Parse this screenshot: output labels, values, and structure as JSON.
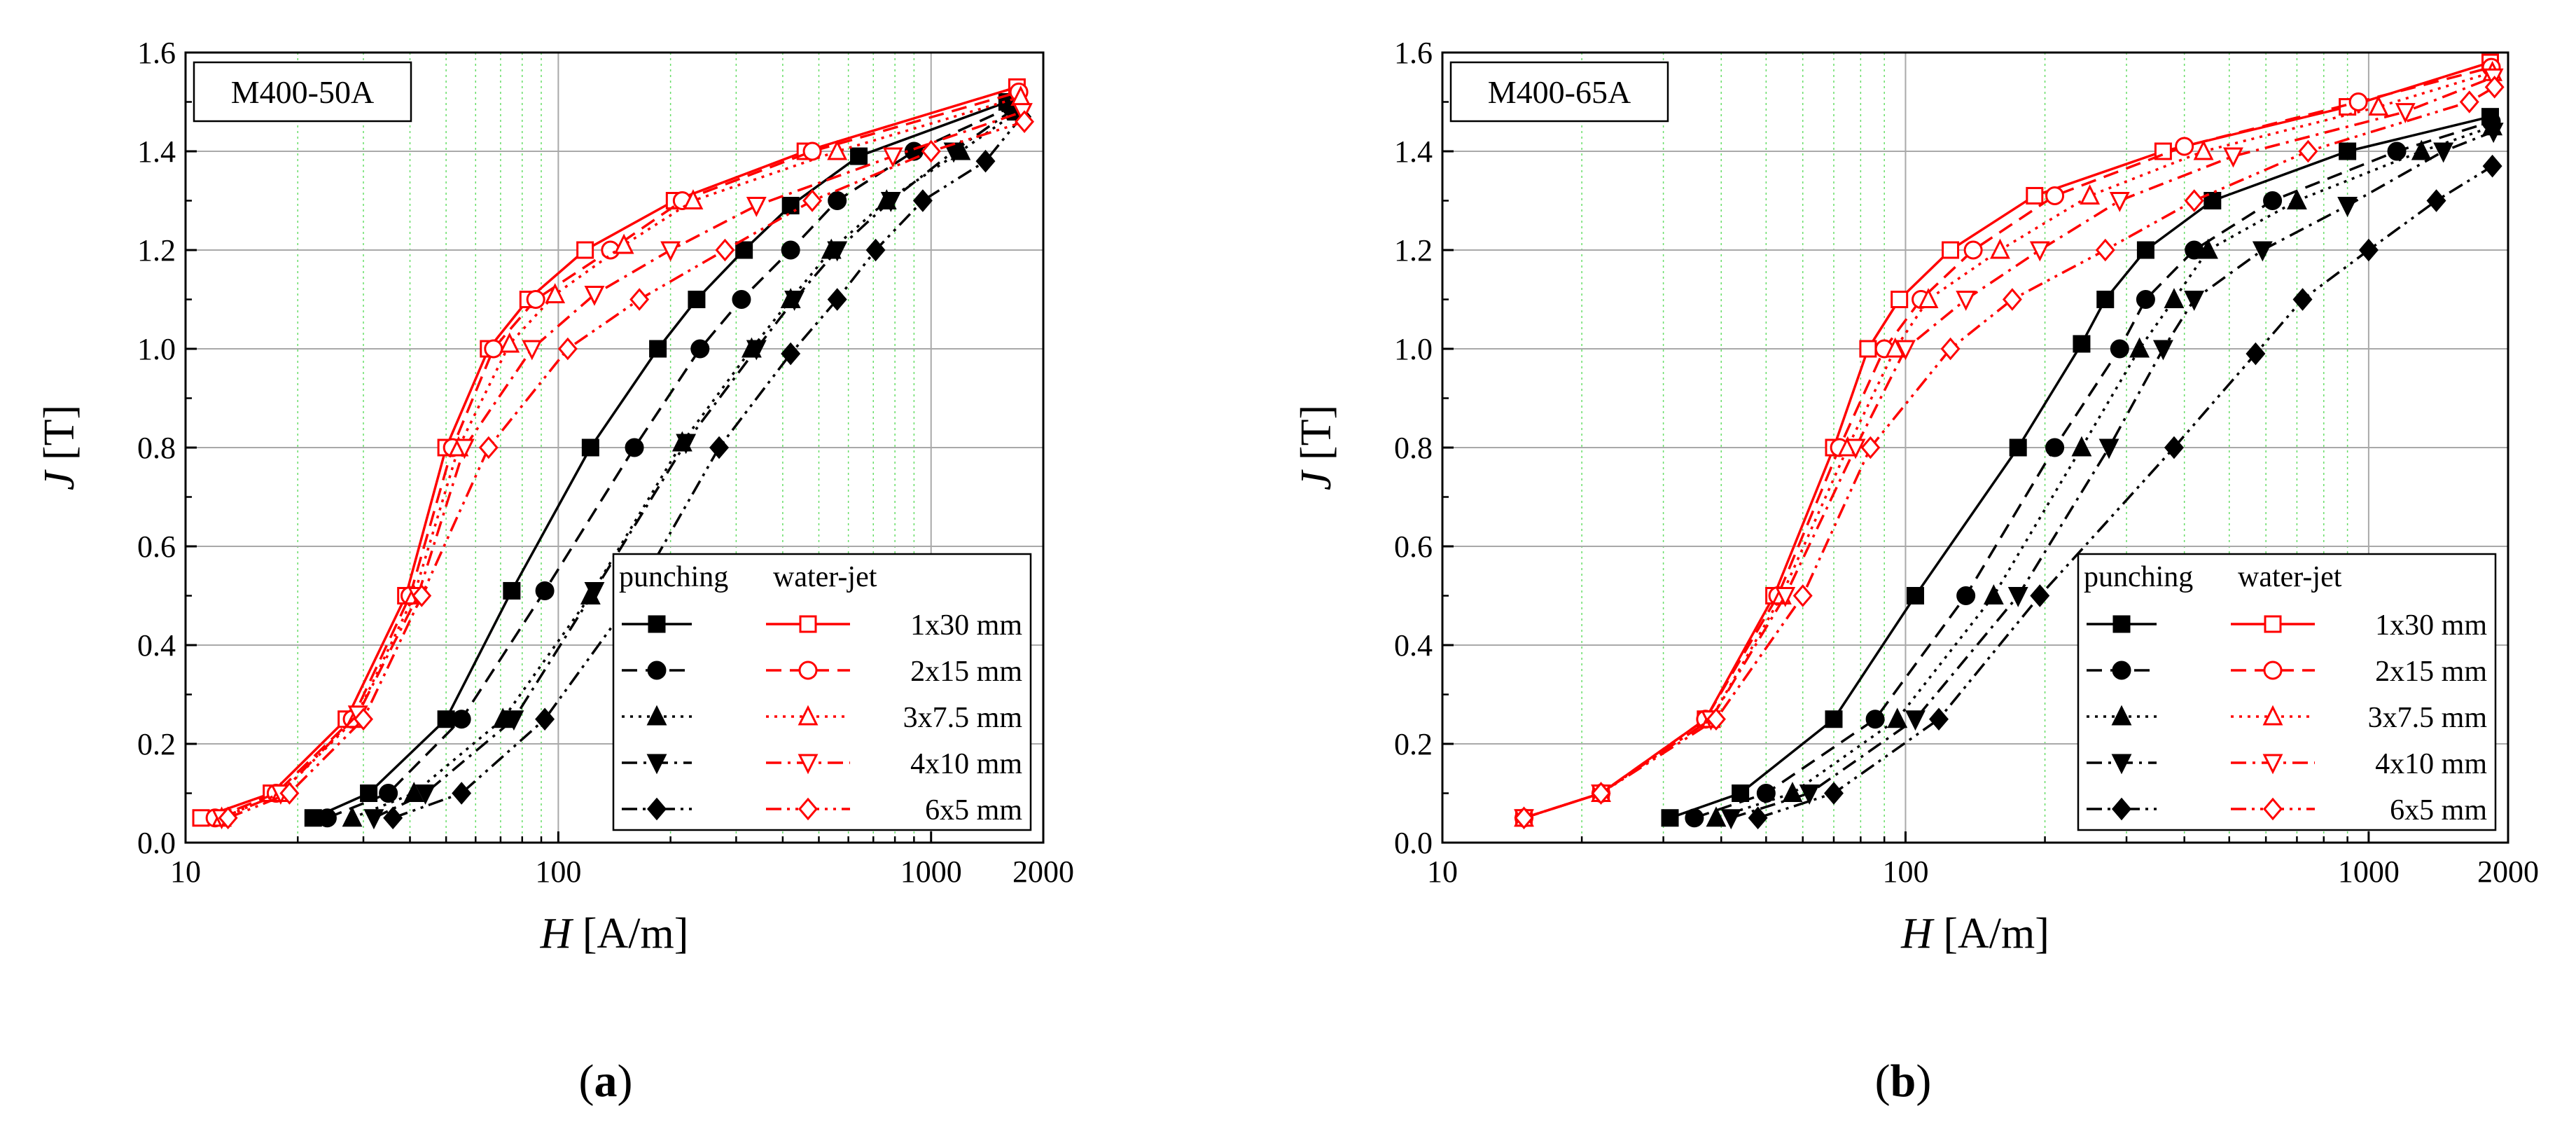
{
  "figure": {
    "panel_labels": [
      "a",
      "b"
    ]
  },
  "legend": {
    "header_punching": "punching",
    "header_waterjet": "water-jet",
    "entries": [
      "1x30 mm",
      "2x15 mm",
      "3x7.5 mm",
      "4x10 mm",
      "6x5 mm"
    ]
  },
  "colors": {
    "punching": "#000000",
    "waterjet": "#ff0000",
    "major_grid": "#a9a9a9",
    "minor_grid": "#66dd66"
  },
  "chart_data": [
    {
      "type": "line",
      "panel": "a",
      "annotation": "M400-50A",
      "xlabel_var": "H",
      "xlabel_unit": " [A/m]",
      "ylabel_var": "J",
      "ylabel_unit": " [T]",
      "xscale": "log",
      "xlim": [
        10,
        2000
      ],
      "ylim": [
        0,
        1.6
      ],
      "xticks": [
        10,
        100,
        1000,
        2000
      ],
      "xtick_labels": [
        "10",
        "100",
        "1000",
        "2000"
      ],
      "yticks": [
        0,
        0.2,
        0.4,
        0.6,
        0.8,
        1.0,
        1.2,
        1.4,
        1.6
      ],
      "ytick_labels": [
        "0.0",
        "0.2",
        "0.4",
        "0.6",
        "0.8",
        "1.0",
        "1.2",
        "1.4",
        "1.6"
      ],
      "grid": true,
      "legend_position": "bottom-right",
      "series": [
        {
          "name": "1x30 mm",
          "method": "punching",
          "marker": "square-filled",
          "dash": "solid",
          "x": [
            22,
            31,
            50,
            75,
            122,
            185,
            235,
            315,
            420,
            640,
            1600
          ],
          "y": [
            0.05,
            0.1,
            0.25,
            0.51,
            0.8,
            1.0,
            1.1,
            1.2,
            1.29,
            1.39,
            1.5
          ]
        },
        {
          "name": "2x15 mm",
          "method": "punching",
          "marker": "circle-filled",
          "dash": "dash",
          "x": [
            24,
            35,
            55,
            92,
            160,
            240,
            310,
            420,
            560,
            900,
            1640
          ],
          "y": [
            0.05,
            0.1,
            0.25,
            0.51,
            0.8,
            1.0,
            1.1,
            1.2,
            1.3,
            1.4,
            1.49
          ]
        },
        {
          "name": "3x7.5 mm",
          "method": "punching",
          "marker": "triangle-up-filled",
          "dash": "dot",
          "x": [
            28,
            41,
            71,
            122,
            215,
            330,
            420,
            540,
            760,
            1200,
            1700
          ],
          "y": [
            0.05,
            0.1,
            0.25,
            0.5,
            0.81,
            1.0,
            1.1,
            1.2,
            1.3,
            1.4,
            1.48
          ]
        },
        {
          "name": "4x10 mm",
          "method": "punching",
          "marker": "triangle-down-filled",
          "dash": "dashdot",
          "x": [
            32,
            44,
            76,
            125,
            220,
            340,
            430,
            560,
            780,
            1150,
            1700
          ],
          "y": [
            0.05,
            0.1,
            0.25,
            0.51,
            0.81,
            1.0,
            1.1,
            1.2,
            1.3,
            1.4,
            1.49
          ]
        },
        {
          "name": "6x5 mm",
          "method": "punching",
          "marker": "diamond-filled",
          "dash": "dashdotdot",
          "x": [
            36,
            55,
            92,
            160,
            270,
            420,
            560,
            710,
            950,
            1400,
            1750
          ],
          "y": [
            0.05,
            0.1,
            0.25,
            0.5,
            0.8,
            0.99,
            1.1,
            1.2,
            1.3,
            1.38,
            1.47
          ]
        },
        {
          "name": "1x30 mm",
          "method": "water-jet",
          "marker": "square-open",
          "dash": "solid",
          "x": [
            11,
            17,
            27,
            39,
            50,
            65,
            83,
            118,
            205,
            460,
            1700
          ],
          "y": [
            0.05,
            0.1,
            0.25,
            0.5,
            0.8,
            1.0,
            1.1,
            1.2,
            1.3,
            1.4,
            1.53
          ]
        },
        {
          "name": "2x15 mm",
          "method": "water-jet",
          "marker": "circle-open",
          "dash": "dash",
          "x": [
            12,
            17.5,
            28,
            40,
            52,
            67,
            87,
            138,
            215,
            480,
            1720
          ],
          "y": [
            0.05,
            0.1,
            0.25,
            0.5,
            0.8,
            1.0,
            1.1,
            1.2,
            1.3,
            1.4,
            1.52
          ]
        },
        {
          "name": "3x7.5 mm",
          "method": "water-jet",
          "marker": "triangle-up-open",
          "dash": "dot",
          "x": [
            12.5,
            18,
            28.5,
            41,
            54,
            74,
            98,
            150,
            230,
            560,
            1740
          ],
          "y": [
            0.05,
            0.1,
            0.25,
            0.5,
            0.8,
            1.01,
            1.11,
            1.21,
            1.3,
            1.4,
            1.51
          ]
        },
        {
          "name": "4x10 mm",
          "method": "water-jet",
          "marker": "triangle-down-open",
          "dash": "dashdot",
          "x": [
            12.5,
            18,
            29,
            42,
            56,
            85,
            125,
            200,
            340,
            790,
            1760
          ],
          "y": [
            0.05,
            0.1,
            0.26,
            0.5,
            0.8,
            1.0,
            1.11,
            1.2,
            1.29,
            1.39,
            1.48
          ]
        },
        {
          "name": "6x5 mm",
          "method": "water-jet",
          "marker": "diamond-open",
          "dash": "dashdotdot",
          "x": [
            13,
            19,
            30,
            43,
            65,
            106,
            165,
            280,
            480,
            1000,
            1780
          ],
          "y": [
            0.05,
            0.1,
            0.25,
            0.5,
            0.8,
            1.0,
            1.1,
            1.2,
            1.3,
            1.4,
            1.46
          ]
        }
      ]
    },
    {
      "type": "line",
      "panel": "b",
      "annotation": "M400-65A",
      "xlabel_var": "H",
      "xlabel_unit": " [A/m]",
      "ylabel_var": "J",
      "ylabel_unit": " [T]",
      "xscale": "log",
      "xlim": [
        10,
        2000
      ],
      "ylim": [
        0,
        1.6
      ],
      "xticks": [
        10,
        100,
        1000,
        2000
      ],
      "xtick_labels": [
        "10",
        "100",
        "1000",
        "2000"
      ],
      "yticks": [
        0,
        0.2,
        0.4,
        0.6,
        0.8,
        1.0,
        1.2,
        1.4,
        1.6
      ],
      "ytick_labels": [
        "0.0",
        "0.2",
        "0.4",
        "0.6",
        "0.8",
        "1.0",
        "1.2",
        "1.4",
        "1.6"
      ],
      "grid": true,
      "legend_position": "bottom-right",
      "series": [
        {
          "name": "1x30 mm",
          "method": "punching",
          "marker": "square-filled",
          "dash": "solid",
          "x": [
            31,
            44,
            70,
            105,
            175,
            240,
            270,
            330,
            460,
            900,
            1830
          ],
          "y": [
            0.05,
            0.1,
            0.25,
            0.5,
            0.8,
            1.01,
            1.1,
            1.2,
            1.3,
            1.4,
            1.47
          ]
        },
        {
          "name": "2x15 mm",
          "method": "punching",
          "marker": "circle-filled",
          "dash": "dash",
          "x": [
            35,
            50,
            86,
            135,
            210,
            290,
            330,
            420,
            620,
            1150,
            1840
          ],
          "y": [
            0.05,
            0.1,
            0.25,
            0.5,
            0.8,
            1.0,
            1.1,
            1.2,
            1.3,
            1.4,
            1.46
          ]
        },
        {
          "name": "3x7.5 mm",
          "method": "punching",
          "marker": "triangle-up-filled",
          "dash": "dot",
          "x": [
            39,
            57,
            96,
            155,
            240,
            320,
            380,
            450,
            700,
            1300,
            1850
          ],
          "y": [
            0.05,
            0.1,
            0.25,
            0.5,
            0.8,
            1.0,
            1.1,
            1.2,
            1.3,
            1.4,
            1.45
          ]
        },
        {
          "name": "4x10 mm",
          "method": "punching",
          "marker": "triangle-down-filled",
          "dash": "dashdot",
          "x": [
            42,
            62,
            105,
            175,
            275,
            360,
            420,
            590,
            900,
            1450,
            1860
          ],
          "y": [
            0.05,
            0.1,
            0.25,
            0.5,
            0.8,
            1.0,
            1.1,
            1.2,
            1.29,
            1.4,
            1.44
          ]
        },
        {
          "name": "6x5 mm",
          "method": "punching",
          "marker": "diamond-filled",
          "dash": "dashdotdot",
          "x": [
            48,
            70,
            118,
            195,
            380,
            570,
            720,
            1000,
            1400,
            1850
          ],
          "y": [
            0.05,
            0.1,
            0.25,
            0.5,
            0.8,
            0.99,
            1.1,
            1.2,
            1.3,
            1.37
          ]
        },
        {
          "name": "1x30 mm",
          "method": "water-jet",
          "marker": "square-open",
          "dash": "solid",
          "x": [
            15,
            22,
            37,
            52,
            70,
            83,
            97,
            125,
            190,
            360,
            900,
            1830
          ],
          "y": [
            0.05,
            0.1,
            0.25,
            0.5,
            0.8,
            1.0,
            1.1,
            1.2,
            1.31,
            1.4,
            1.49,
            1.58
          ]
        },
        {
          "name": "2x15 mm",
          "method": "water-jet",
          "marker": "circle-open",
          "dash": "dash",
          "x": [
            15,
            22,
            37,
            53,
            72,
            90,
            108,
            140,
            210,
            400,
            950,
            1840
          ],
          "y": [
            0.05,
            0.1,
            0.25,
            0.5,
            0.8,
            1.0,
            1.1,
            1.2,
            1.31,
            1.41,
            1.5,
            1.57
          ]
        },
        {
          "name": "3x7.5 mm",
          "method": "water-jet",
          "marker": "triangle-up-open",
          "dash": "dot",
          "x": [
            15,
            22,
            38,
            54,
            75,
            95,
            112,
            160,
            250,
            440,
            1050,
            1850
          ],
          "y": [
            0.05,
            0.1,
            0.25,
            0.5,
            0.8,
            1.0,
            1.1,
            1.2,
            1.31,
            1.4,
            1.49,
            1.56
          ]
        },
        {
          "name": "4x10 mm",
          "method": "water-jet",
          "marker": "triangle-down-open",
          "dash": "dashdot",
          "x": [
            15,
            22,
            38,
            55,
            78,
            100,
            135,
            195,
            290,
            510,
            1200,
            1860
          ],
          "y": [
            0.05,
            0.1,
            0.25,
            0.5,
            0.8,
            1.0,
            1.1,
            1.2,
            1.3,
            1.39,
            1.48,
            1.55
          ]
        },
        {
          "name": "6x5 mm",
          "method": "water-jet",
          "marker": "diamond-open",
          "dash": "dashdotdot",
          "x": [
            15,
            22,
            39,
            60,
            84,
            125,
            170,
            270,
            420,
            740,
            1650,
            1870
          ],
          "y": [
            0.05,
            0.1,
            0.25,
            0.5,
            0.8,
            1.0,
            1.1,
            1.2,
            1.3,
            1.4,
            1.5,
            1.53
          ]
        }
      ]
    }
  ]
}
